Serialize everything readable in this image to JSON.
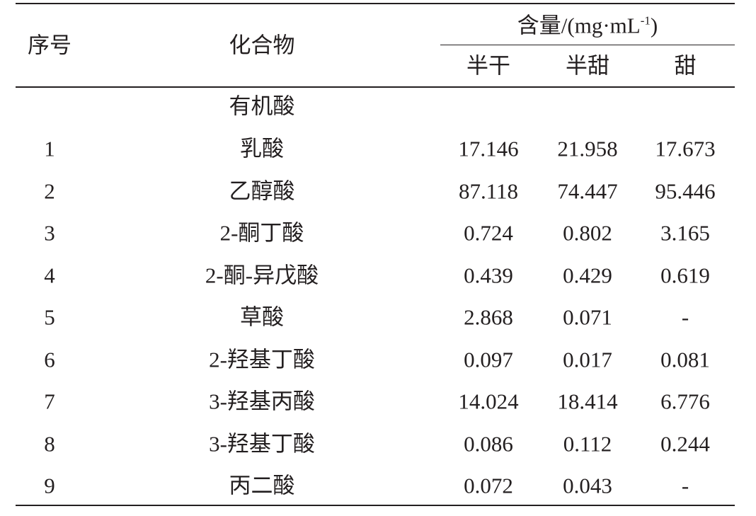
{
  "table": {
    "header": {
      "index": "序号",
      "compound": "化合物",
      "content": [
        "含量/(mg·mL",
        "-1",
        ")"
      ],
      "columns": [
        "半干",
        "半甜",
        "甜"
      ]
    },
    "section": "有机酸",
    "rows": [
      [
        "1",
        "乳酸",
        "17.146",
        "21.958",
        "17.673"
      ],
      [
        "2",
        "乙醇酸",
        "87.118",
        "74.447",
        "95.446"
      ],
      [
        "3",
        "2-酮丁酸",
        "0.724",
        "0.802",
        "3.165"
      ],
      [
        "4",
        "2-酮-异戊酸",
        "0.439",
        "0.429",
        "0.619"
      ],
      [
        "5",
        "草酸",
        "2.868",
        "0.071",
        "-"
      ],
      [
        "6",
        "2-羟基丁酸",
        "0.097",
        "0.017",
        "0.081"
      ],
      [
        "7",
        "3-羟基丙酸",
        "14.024",
        "18.414",
        "6.776"
      ],
      [
        "8",
        "3-羟基丁酸",
        "0.086",
        "0.112",
        "0.244"
      ],
      [
        "9",
        "丙二酸",
        "0.072",
        "0.043",
        "-"
      ]
    ]
  }
}
